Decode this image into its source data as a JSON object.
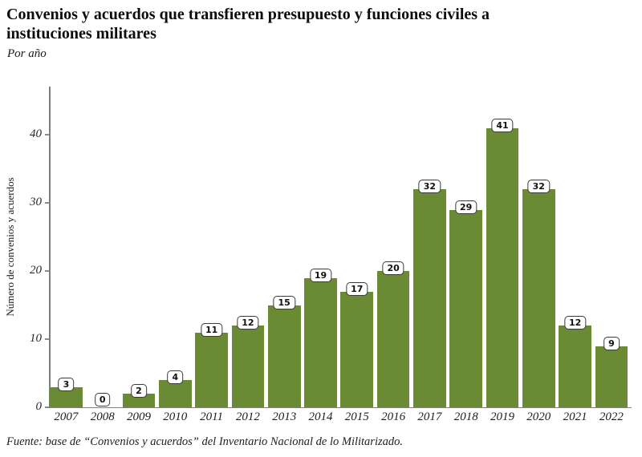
{
  "header": {
    "title": "Convenios y acuerdos que transfieren presupuesto y funciones civiles a instituciones militares",
    "subtitle": "Por año"
  },
  "chart_data": {
    "type": "bar",
    "title": "Convenios y acuerdos que transfieren presupuesto y funciones civiles a instituciones militares",
    "subtitle": "Por año",
    "categories": [
      "2007",
      "2008",
      "2009",
      "2010",
      "2011",
      "2012",
      "2013",
      "2014",
      "2015",
      "2016",
      "2017",
      "2018",
      "2019",
      "2020",
      "2021",
      "2022"
    ],
    "values": [
      3,
      0,
      2,
      4,
      11,
      12,
      15,
      19,
      17,
      20,
      32,
      29,
      41,
      32,
      12,
      9
    ],
    "xlabel": "",
    "ylabel": "Número de convenios y acuerdos",
    "yticks": [
      0,
      10,
      20,
      30,
      40
    ],
    "ylim": [
      0,
      47
    ],
    "grid": false,
    "legend": "none",
    "data_labels": true,
    "bar_color": "#6a8a33",
    "axis_color": "#7f7f7f",
    "label_box_border_color": "#3a3a3a"
  },
  "footer": {
    "source": "Fuente: base de “Convenios y acuerdos” del Inventario Nacional de lo Militarizado."
  }
}
